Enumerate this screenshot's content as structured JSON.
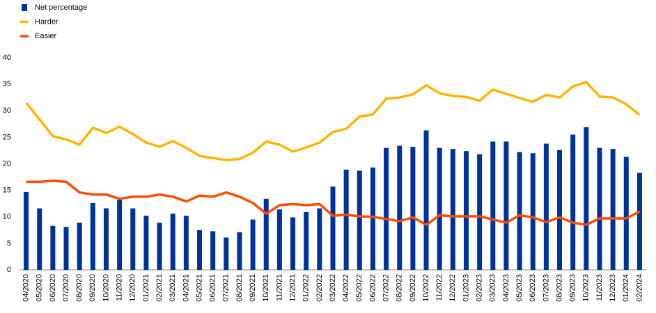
{
  "chart_data": {
    "type": "bar",
    "categories": [
      "04/2020",
      "05/2020",
      "06/2020",
      "07/2020",
      "08/2020",
      "09/2020",
      "10/2020",
      "11/2020",
      "12/2020",
      "01/2021",
      "02/2021",
      "03/2021",
      "04/2021",
      "05/2021",
      "06/2021",
      "07/2021",
      "08/2021",
      "09/2021",
      "10/2021",
      "11/2021",
      "12/2021",
      "01/2022",
      "02/2022",
      "03/2022",
      "04/2022",
      "05/2022",
      "06/2022",
      "07/2022",
      "08/2022",
      "09/2022",
      "10/2022",
      "11/2022",
      "12/2022",
      "01/2023",
      "02/2023",
      "03/2023",
      "04/2023",
      "05/2023",
      "06/2023",
      "07/2023",
      "08/2023",
      "09/2023",
      "10/2023",
      "11/2023",
      "12/2023",
      "01/2024",
      "02/2024"
    ],
    "series": [
      {
        "name": "Net percentage",
        "type": "bar",
        "color": "#003299",
        "values": [
          14.7,
          11.6,
          8.3,
          8.1,
          8.9,
          12.6,
          11.6,
          13.2,
          11.6,
          10.2,
          8.9,
          10.6,
          10.2,
          7.5,
          7.3,
          6.1,
          7.1,
          9.5,
          13.4,
          11.4,
          9.9,
          10.9,
          11.6,
          15.7,
          18.9,
          18.7,
          19.3,
          23.0,
          23.4,
          23.2,
          26.3,
          23.0,
          22.8,
          22.4,
          21.8,
          24.2,
          24.2,
          22.2,
          22.0,
          23.8,
          22.6,
          25.5,
          26.9,
          23.0,
          22.8,
          21.3,
          18.3
        ]
      },
      {
        "name": "Harder",
        "type": "line",
        "color": "#ffb400",
        "values": [
          31.5,
          28.4,
          25.2,
          24.6,
          23.6,
          26.8,
          25.8,
          27.0,
          25.6,
          24.0,
          23.2,
          24.3,
          23.0,
          21.5,
          21.1,
          20.7,
          20.9,
          22.1,
          24.2,
          23.6,
          22.3,
          23.1,
          24.0,
          26.0,
          26.6,
          28.9,
          29.3,
          32.3,
          32.5,
          33.1,
          34.8,
          33.3,
          32.8,
          32.6,
          31.9,
          34.0,
          33.2,
          32.4,
          31.7,
          33.0,
          32.5,
          34.6,
          35.4,
          32.7,
          32.5,
          31.2,
          29.2
        ]
      },
      {
        "name": "Easier",
        "type": "line",
        "color": "#ff4b00",
        "values": [
          16.6,
          16.6,
          16.8,
          16.6,
          14.6,
          14.2,
          14.2,
          13.4,
          13.8,
          13.8,
          14.2,
          13.8,
          12.9,
          14.0,
          13.8,
          14.6,
          13.8,
          12.6,
          10.6,
          12.2,
          12.4,
          12.2,
          12.4,
          10.2,
          10.4,
          10.1,
          10.0,
          9.6,
          9.2,
          9.9,
          8.5,
          10.3,
          10.1,
          10.1,
          10.1,
          9.5,
          8.9,
          10.3,
          9.9,
          9.0,
          9.9,
          8.9,
          8.5,
          9.7,
          9.7,
          9.7,
          11.0
        ]
      }
    ],
    "ylim": [
      0,
      40
    ],
    "yticks": [
      0,
      5,
      10,
      15,
      20,
      25,
      30,
      35,
      40
    ],
    "grid": false,
    "legend": "top-left"
  }
}
